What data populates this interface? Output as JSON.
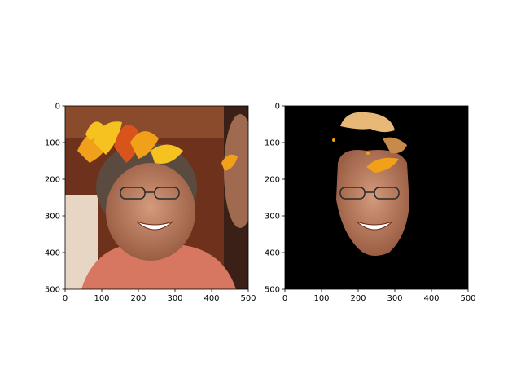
{
  "chart_data": [
    {
      "type": "image",
      "title": "",
      "xlabel": "",
      "ylabel": "",
      "xlim": [
        0,
        500
      ],
      "ylim": [
        500,
        0
      ],
      "xticks": [
        0,
        100,
        200,
        300,
        400,
        500
      ],
      "yticks": [
        0,
        100,
        200,
        300,
        400,
        500
      ],
      "content": "photo of smiling man with autumn-leaf overlay"
    },
    {
      "type": "image",
      "title": "",
      "xlabel": "",
      "ylabel": "",
      "xlim": [
        0,
        500
      ],
      "ylim": [
        500,
        0
      ],
      "xticks": [
        0,
        100,
        200,
        300,
        400,
        500
      ],
      "yticks": [
        0,
        100,
        200,
        300,
        400,
        500
      ],
      "content": "face-segmented image on black background"
    }
  ],
  "colors": {
    "background_panel2": "#000000",
    "wall": "#7a3a22",
    "skin": "#b87a5c",
    "shirt": "#d77762",
    "leaf_orange": "#f0a019",
    "leaf_red": "#d9541a",
    "leaf_yellow": "#f6c21f"
  }
}
